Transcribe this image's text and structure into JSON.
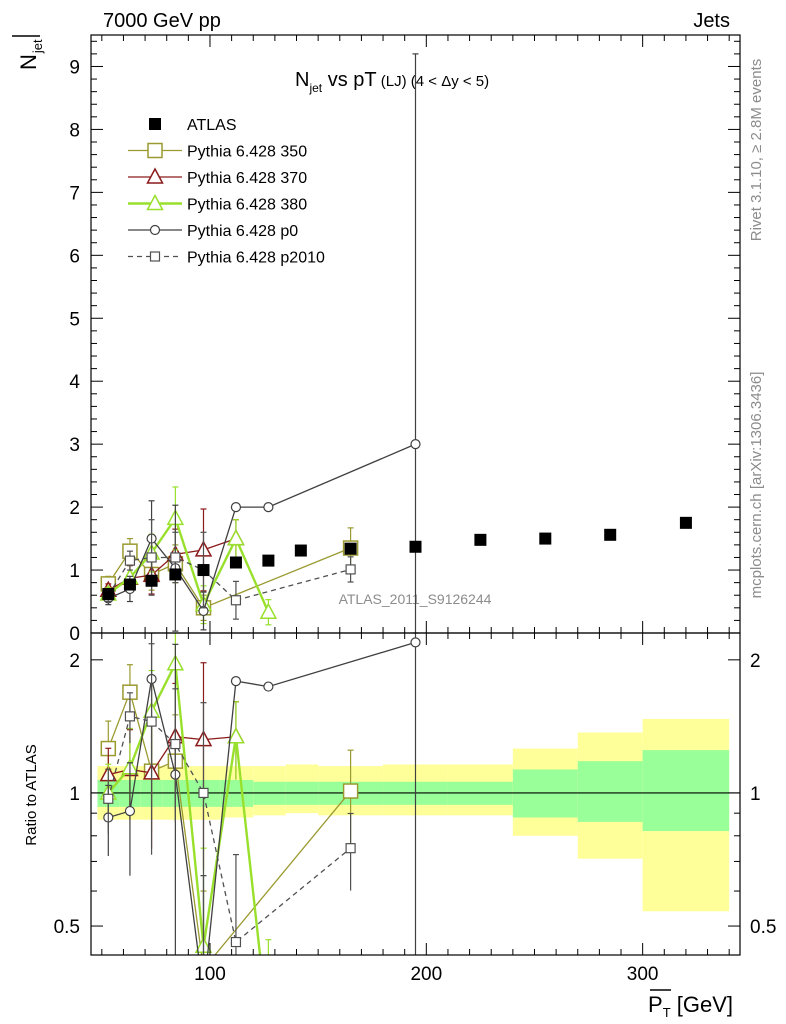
{
  "header": {
    "left": "7000 GeV pp",
    "right": "Jets"
  },
  "side_text": {
    "rivet": "Rivet 3.1.10, ≥ 2.8M events",
    "mcplots": "mcplots.cern.ch [arXiv:1306.3436]"
  },
  "chart_data": [
    {
      "type": "line",
      "title_main": "N",
      "title_main_sub": "jet",
      "title_rest": " vs pT",
      "title_paren": " (LJ)",
      "title_cut": " (4 < Δy < 5)",
      "analysis_id": "ATLAS_2011_S9126244",
      "ylabel_main": "N",
      "ylabel_sub": "jet",
      "ylim": [
        0,
        9.5
      ],
      "xlim": [
        45,
        345
      ],
      "x_ticks": [
        100,
        200,
        300
      ],
      "y_ticks": [
        0,
        1,
        2,
        3,
        4,
        5,
        6,
        7,
        8,
        9
      ],
      "y_tick_labels": [
        "0",
        "1",
        "2",
        "3",
        "4",
        "5",
        "6",
        "7",
        "8",
        "9"
      ],
      "legend_position": "top-left",
      "data": {
        "name": "ATLAS",
        "color": "#000000",
        "x": [
          53,
          63,
          73,
          84,
          97,
          112,
          127,
          142,
          165,
          195,
          225,
          255,
          285,
          320
        ],
        "y": [
          0.62,
          0.77,
          0.83,
          0.93,
          1.0,
          1.12,
          1.15,
          1.31,
          1.34,
          1.37,
          1.48,
          1.5,
          1.56,
          1.75
        ]
      },
      "series": [
        {
          "name": "Pythia 6.428 350",
          "color": "#9a9a30",
          "marker": "square",
          "dash": false,
          "x": [
            53,
            63,
            73,
            84,
            97,
            165
          ],
          "y": [
            0.78,
            1.3,
            0.93,
            1.1,
            0.4,
            1.35
          ],
          "err": [
            0.12,
            0.2,
            0.25,
            0.3,
            0.2,
            0.32
          ]
        },
        {
          "name": "Pythia 6.428 370",
          "color": "#8b1a1a",
          "marker": "triangle",
          "dash": false,
          "x": [
            53,
            63,
            73,
            84,
            97,
            112
          ],
          "y": [
            0.68,
            0.87,
            0.92,
            1.25,
            1.32,
            1.5
          ],
          "err": [
            0.1,
            0.2,
            0.3,
            0.4,
            0.65,
            0.3
          ]
        },
        {
          "name": "Pythia 6.428 380",
          "color": "#99e02c",
          "marker": "triangle",
          "dash": false,
          "x": [
            53,
            63,
            73,
            84,
            97,
            112,
            127
          ],
          "y": [
            0.62,
            0.88,
            1.27,
            1.82,
            0.45,
            1.5,
            0.33
          ],
          "err": [
            0.1,
            0.2,
            0.3,
            0.5,
            0.3,
            0.3,
            0.2
          ]
        },
        {
          "name": "Pythia 6.428 p0",
          "color": "#404040",
          "marker": "circle",
          "dash": false,
          "x": [
            53,
            63,
            73,
            84,
            97,
            112,
            127,
            195
          ],
          "y": [
            0.55,
            0.7,
            1.5,
            1.03,
            0.35,
            2.0,
            2.0,
            3.0
          ],
          "err": [
            0.1,
            0.2,
            0.6,
            1.0,
            0.3,
            0,
            0,
            6.2
          ]
        },
        {
          "name": "Pythia 6.428 p2010",
          "color": "#505050",
          "marker": "square_small",
          "dash": true,
          "x": [
            53,
            63,
            73,
            84,
            97,
            112,
            165
          ],
          "y": [
            0.6,
            1.15,
            1.2,
            1.2,
            1.0,
            0.52,
            1.01
          ],
          "err": [
            0.1,
            0.15,
            0.6,
            0.4,
            0.6,
            0.3,
            0.2
          ]
        }
      ]
    },
    {
      "type": "line",
      "ylabel": "Ratio to ATLAS",
      "ylim": [
        0.43,
        2.3
      ],
      "xlim": [
        45,
        345
      ],
      "xlabel_main": "P",
      "xlabel_sub": "T",
      "xlabel_unit": " [GeV]",
      "x_ticks": [
        100,
        200,
        300
      ],
      "x_tick_labels": [
        "100",
        "200",
        "300"
      ],
      "y_ticks": [
        0.5,
        1,
        2
      ],
      "y_tick_labels": [
        "0.5",
        "1",
        "2"
      ],
      "bands": {
        "edges": [
          48,
          58,
          68,
          78,
          90,
          105,
          120,
          135,
          150,
          180,
          210,
          240,
          270,
          300,
          340
        ],
        "green_low": [
          0.93,
          0.93,
          0.93,
          0.93,
          0.93,
          0.93,
          0.94,
          0.94,
          0.94,
          0.94,
          0.94,
          0.88,
          0.86,
          0.82
        ],
        "green_high": [
          1.07,
          1.07,
          1.07,
          1.07,
          1.07,
          1.07,
          1.06,
          1.06,
          1.06,
          1.06,
          1.06,
          1.13,
          1.18,
          1.25
        ],
        "yellow_low": [
          0.87,
          0.87,
          0.87,
          0.87,
          0.87,
          0.88,
          0.89,
          0.9,
          0.89,
          0.89,
          0.89,
          0.8,
          0.71,
          0.54
        ],
        "yellow_high": [
          1.15,
          1.15,
          1.15,
          1.15,
          1.15,
          1.15,
          1.15,
          1.16,
          1.15,
          1.16,
          1.16,
          1.26,
          1.37,
          1.47
        ]
      },
      "series": [
        {
          "name": "Pythia 6.428 350",
          "x": [
            53,
            63,
            73,
            84,
            97,
            165
          ],
          "y": [
            1.26,
            1.69,
            1.12,
            1.18,
            0.4,
            1.01
          ]
        },
        {
          "name": "Pythia 6.428 370",
          "x": [
            53,
            63,
            73,
            84,
            97,
            112
          ],
          "y": [
            1.1,
            1.13,
            1.11,
            1.34,
            1.32,
            1.34
          ]
        },
        {
          "name": "Pythia 6.428 380",
          "x": [
            53,
            63,
            73,
            84,
            97,
            112,
            127
          ],
          "y": [
            1.0,
            1.14,
            1.53,
            1.96,
            0.45,
            1.34,
            0.29
          ]
        },
        {
          "name": "Pythia 6.428 p0",
          "x": [
            53,
            63,
            73,
            84,
            97,
            112,
            127,
            195
          ],
          "y": [
            0.88,
            0.91,
            1.81,
            1.1,
            0.35,
            1.79,
            1.74,
            2.19
          ]
        },
        {
          "name": "Pythia 6.428 p2010",
          "x": [
            53,
            63,
            73,
            84,
            97,
            112,
            165
          ],
          "y": [
            0.97,
            1.49,
            1.45,
            1.29,
            1.0,
            0.46,
            0.75
          ]
        }
      ]
    }
  ]
}
